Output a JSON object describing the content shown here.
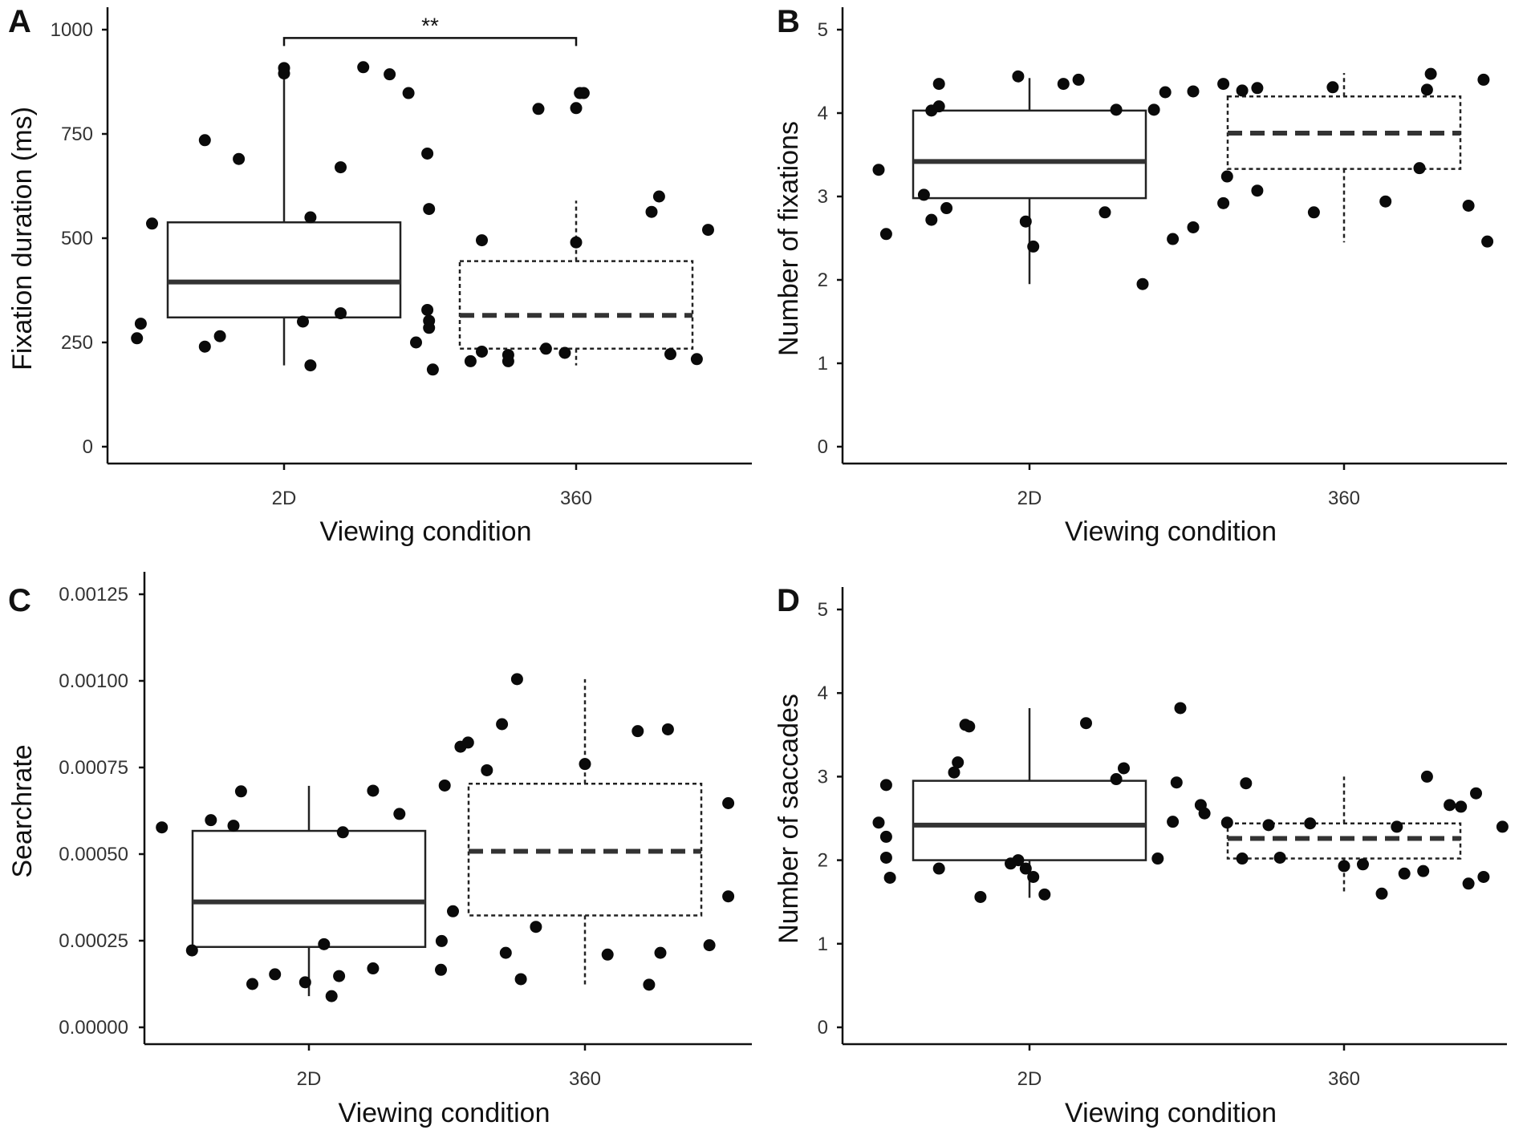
{
  "chart_data": [
    {
      "type": "box",
      "panel_label": "A",
      "xlabel": "Viewing condition",
      "ylabel": "Fixation duration (ms)",
      "categories": [
        "2D",
        "360"
      ],
      "ylim": [
        0,
        1000
      ],
      "yticks": [
        0,
        250,
        500,
        750,
        1000
      ],
      "ytick_labels": [
        "0",
        "250",
        "500",
        "750",
        "1000"
      ],
      "boxes": [
        {
          "category": "2D",
          "q1": 310,
          "median": 395,
          "q3": 538,
          "whisker_low": 195,
          "whisker_high": 900,
          "line_style": "solid"
        },
        {
          "category": "360",
          "q1": 235,
          "median": 315,
          "q3": 445,
          "whisker_low": 195,
          "whisker_high": 590,
          "line_style": "dashed"
        }
      ],
      "points": [
        {
          "category": "2D",
          "jitter": -0.39,
          "value": 260
        },
        {
          "category": "2D",
          "jitter": -0.38,
          "value": 295
        },
        {
          "category": "2D",
          "jitter": -0.35,
          "value": 535
        },
        {
          "category": "2D",
          "jitter": -0.21,
          "value": 735
        },
        {
          "category": "2D",
          "jitter": -0.21,
          "value": 240
        },
        {
          "category": "2D",
          "jitter": -0.17,
          "value": 265
        },
        {
          "category": "2D",
          "jitter": -0.12,
          "value": 690
        },
        {
          "category": "2D",
          "jitter": 0.0,
          "value": 908
        },
        {
          "category": "2D",
          "jitter": 0.0,
          "value": 895
        },
        {
          "category": "2D",
          "jitter": 0.05,
          "value": 300
        },
        {
          "category": "2D",
          "jitter": 0.07,
          "value": 550
        },
        {
          "category": "2D",
          "jitter": 0.07,
          "value": 195
        },
        {
          "category": "2D",
          "jitter": 0.15,
          "value": 670
        },
        {
          "category": "2D",
          "jitter": 0.15,
          "value": 320
        },
        {
          "category": "2D",
          "jitter": 0.21,
          "value": 910
        },
        {
          "category": "2D",
          "jitter": 0.28,
          "value": 893
        },
        {
          "category": "2D",
          "jitter": 0.33,
          "value": 848
        },
        {
          "category": "2D",
          "jitter": 0.35,
          "value": 250
        },
        {
          "category": "2D",
          "jitter": 0.38,
          "value": 703
        },
        {
          "category": "2D",
          "jitter": 0.38,
          "value": 328
        },
        {
          "category": "360",
          "jitter": -0.39,
          "value": 570
        },
        {
          "category": "360",
          "jitter": -0.39,
          "value": 302
        },
        {
          "category": "360",
          "jitter": -0.39,
          "value": 285
        },
        {
          "category": "360",
          "jitter": -0.38,
          "value": 185
        },
        {
          "category": "360",
          "jitter": -0.28,
          "value": 205
        },
        {
          "category": "360",
          "jitter": -0.25,
          "value": 495
        },
        {
          "category": "360",
          "jitter": -0.25,
          "value": 228
        },
        {
          "category": "360",
          "jitter": -0.18,
          "value": 205
        },
        {
          "category": "360",
          "jitter": -0.18,
          "value": 220
        },
        {
          "category": "360",
          "jitter": -0.1,
          "value": 810
        },
        {
          "category": "360",
          "jitter": -0.08,
          "value": 235
        },
        {
          "category": "360",
          "jitter": -0.03,
          "value": 225
        },
        {
          "category": "360",
          "jitter": 0.0,
          "value": 490
        },
        {
          "category": "360",
          "jitter": 0.0,
          "value": 812
        },
        {
          "category": "360",
          "jitter": 0.01,
          "value": 848
        },
        {
          "category": "360",
          "jitter": 0.02,
          "value": 848
        },
        {
          "category": "360",
          "jitter": 0.2,
          "value": 563
        },
        {
          "category": "360",
          "jitter": 0.22,
          "value": 600
        },
        {
          "category": "360",
          "jitter": 0.25,
          "value": 222
        },
        {
          "category": "360",
          "jitter": 0.32,
          "value": 210
        },
        {
          "category": "360",
          "jitter": 0.35,
          "value": 520
        }
      ],
      "significance": {
        "from": "2D",
        "to": "360",
        "value": 980,
        "label": "**"
      }
    },
    {
      "type": "box",
      "panel_label": "B",
      "xlabel": "Viewing condition",
      "ylabel": "Number of fixations",
      "categories": [
        "2D",
        "360"
      ],
      "ylim": [
        0,
        5
      ],
      "yticks": [
        0,
        1,
        2,
        3,
        4,
        5
      ],
      "ytick_labels": [
        "0",
        "1",
        "2",
        "3",
        "4",
        "5"
      ],
      "boxes": [
        {
          "category": "2D",
          "q1": 2.98,
          "median": 3.42,
          "q3": 4.03,
          "whisker_low": 1.95,
          "whisker_high": 4.42,
          "line_style": "solid"
        },
        {
          "category": "360",
          "q1": 3.33,
          "median": 3.76,
          "q3": 4.2,
          "whisker_low": 2.45,
          "whisker_high": 4.48,
          "line_style": "dashed"
        }
      ],
      "points": [
        {
          "category": "2D",
          "jitter": -0.4,
          "value": 3.32
        },
        {
          "category": "2D",
          "jitter": -0.38,
          "value": 2.55
        },
        {
          "category": "2D",
          "jitter": -0.28,
          "value": 3.02
        },
        {
          "category": "2D",
          "jitter": -0.26,
          "value": 4.03
        },
        {
          "category": "2D",
          "jitter": -0.26,
          "value": 2.72
        },
        {
          "category": "2D",
          "jitter": -0.24,
          "value": 4.35
        },
        {
          "category": "2D",
          "jitter": -0.24,
          "value": 4.08
        },
        {
          "category": "2D",
          "jitter": -0.22,
          "value": 2.86
        },
        {
          "category": "2D",
          "jitter": -0.03,
          "value": 4.44
        },
        {
          "category": "2D",
          "jitter": -0.01,
          "value": 2.7
        },
        {
          "category": "2D",
          "jitter": 0.01,
          "value": 2.4
        },
        {
          "category": "2D",
          "jitter": 0.09,
          "value": 4.35
        },
        {
          "category": "2D",
          "jitter": 0.13,
          "value": 4.4
        },
        {
          "category": "2D",
          "jitter": 0.2,
          "value": 2.81
        },
        {
          "category": "2D",
          "jitter": 0.23,
          "value": 4.04
        },
        {
          "category": "2D",
          "jitter": 0.3,
          "value": 1.95
        },
        {
          "category": "2D",
          "jitter": 0.33,
          "value": 4.04
        },
        {
          "category": "2D",
          "jitter": 0.36,
          "value": 4.25
        },
        {
          "category": "2D",
          "jitter": 0.38,
          "value": 2.49
        },
        {
          "category": "360",
          "jitter": -0.4,
          "value": 4.26
        },
        {
          "category": "360",
          "jitter": -0.4,
          "value": 2.63
        },
        {
          "category": "360",
          "jitter": -0.32,
          "value": 4.35
        },
        {
          "category": "360",
          "jitter": -0.32,
          "value": 2.92
        },
        {
          "category": "360",
          "jitter": -0.31,
          "value": 3.24
        },
        {
          "category": "360",
          "jitter": -0.27,
          "value": 4.27
        },
        {
          "category": "360",
          "jitter": -0.23,
          "value": 4.3
        },
        {
          "category": "360",
          "jitter": -0.23,
          "value": 3.07
        },
        {
          "category": "360",
          "jitter": -0.08,
          "value": 2.81
        },
        {
          "category": "360",
          "jitter": -0.03,
          "value": 4.31
        },
        {
          "category": "360",
          "jitter": 0.11,
          "value": 2.94
        },
        {
          "category": "360",
          "jitter": 0.2,
          "value": 3.34
        },
        {
          "category": "360",
          "jitter": 0.22,
          "value": 4.28
        },
        {
          "category": "360",
          "jitter": 0.23,
          "value": 4.47
        },
        {
          "category": "360",
          "jitter": 0.33,
          "value": 2.89
        },
        {
          "category": "360",
          "jitter": 0.37,
          "value": 4.4
        },
        {
          "category": "360",
          "jitter": 0.38,
          "value": 2.46
        }
      ]
    },
    {
      "type": "box",
      "panel_label": "C",
      "xlabel": "Viewing condition",
      "ylabel": "Searchrate",
      "categories": [
        "2D",
        "360"
      ],
      "ylim": [
        0,
        0.00125
      ],
      "yticks": [
        0,
        0.00025,
        0.0005,
        0.00075,
        0.001,
        0.00125
      ],
      "ytick_labels": [
        "0.00000",
        "0.00025",
        "0.00050",
        "0.00075",
        "0.00100",
        "0.00125"
      ],
      "boxes": [
        {
          "category": "2D",
          "q1": 0.000232,
          "median": 0.000362,
          "q3": 0.000567,
          "whisker_low": 9e-05,
          "whisker_high": 0.000697,
          "line_style": "solid"
        },
        {
          "category": "360",
          "q1": 0.000323,
          "median": 0.000508,
          "q3": 0.000703,
          "whisker_low": 0.00012,
          "whisker_high": 0.001005,
          "line_style": "dashed"
        }
      ],
      "points": [
        {
          "category": "2D",
          "jitter": -0.39,
          "value": 0.000577
        },
        {
          "category": "2D",
          "jitter": -0.31,
          "value": 0.000222
        },
        {
          "category": "2D",
          "jitter": -0.26,
          "value": 0.000598
        },
        {
          "category": "2D",
          "jitter": -0.2,
          "value": 0.000582
        },
        {
          "category": "2D",
          "jitter": -0.18,
          "value": 0.000681
        },
        {
          "category": "2D",
          "jitter": -0.15,
          "value": 0.000125
        },
        {
          "category": "2D",
          "jitter": -0.09,
          "value": 0.000153
        },
        {
          "category": "2D",
          "jitter": -0.01,
          "value": 0.00013
        },
        {
          "category": "2D",
          "jitter": 0.04,
          "value": 0.00024
        },
        {
          "category": "2D",
          "jitter": 0.06,
          "value": 9e-05
        },
        {
          "category": "2D",
          "jitter": 0.08,
          "value": 0.000148
        },
        {
          "category": "2D",
          "jitter": 0.09,
          "value": 0.000563
        },
        {
          "category": "2D",
          "jitter": 0.17,
          "value": 0.00017
        },
        {
          "category": "2D",
          "jitter": 0.17,
          "value": 0.000683
        },
        {
          "category": "2D",
          "jitter": 0.24,
          "value": 0.000616
        },
        {
          "category": "2D",
          "jitter": 0.35,
          "value": 0.000166
        },
        {
          "category": "2D",
          "jitter": 0.36,
          "value": 0.000698
        },
        {
          "category": "360",
          "jitter": -0.38,
          "value": 0.000249
        },
        {
          "category": "360",
          "jitter": -0.35,
          "value": 0.000335
        },
        {
          "category": "360",
          "jitter": -0.33,
          "value": 0.00081
        },
        {
          "category": "360",
          "jitter": -0.31,
          "value": 0.000822
        },
        {
          "category": "360",
          "jitter": -0.26,
          "value": 0.000742
        },
        {
          "category": "360",
          "jitter": -0.22,
          "value": 0.000875
        },
        {
          "category": "360",
          "jitter": -0.21,
          "value": 0.000215
        },
        {
          "category": "360",
          "jitter": -0.17,
          "value": 0.000139
        },
        {
          "category": "360",
          "jitter": -0.18,
          "value": 0.001005
        },
        {
          "category": "360",
          "jitter": -0.13,
          "value": 0.00029
        },
        {
          "category": "360",
          "jitter": 0.0,
          "value": 0.00076
        },
        {
          "category": "360",
          "jitter": 0.06,
          "value": 0.00021
        },
        {
          "category": "360",
          "jitter": 0.14,
          "value": 0.000855
        },
        {
          "category": "360",
          "jitter": 0.17,
          "value": 0.000123
        },
        {
          "category": "360",
          "jitter": 0.2,
          "value": 0.000215
        },
        {
          "category": "360",
          "jitter": 0.22,
          "value": 0.00086
        },
        {
          "category": "360",
          "jitter": 0.33,
          "value": 0.000237
        },
        {
          "category": "360",
          "jitter": 0.38,
          "value": 0.000378
        },
        {
          "category": "360",
          "jitter": 0.38,
          "value": 0.000647
        }
      ]
    },
    {
      "type": "box",
      "panel_label": "D",
      "xlabel": "Viewing condition",
      "ylabel": "Number of saccades",
      "categories": [
        "2D",
        "360"
      ],
      "ylim": [
        0,
        5
      ],
      "yticks": [
        0,
        1,
        2,
        3,
        4,
        5
      ],
      "ytick_labels": [
        "0",
        "1",
        "2",
        "3",
        "4",
        "5"
      ],
      "boxes": [
        {
          "category": "2D",
          "q1": 2.0,
          "median": 2.42,
          "q3": 2.95,
          "whisker_low": 1.55,
          "whisker_high": 3.82,
          "line_style": "solid"
        },
        {
          "category": "360",
          "q1": 2.02,
          "median": 2.26,
          "q3": 2.44,
          "whisker_low": 1.6,
          "whisker_high": 3.0,
          "line_style": "dashed"
        }
      ],
      "points": [
        {
          "category": "2D",
          "jitter": -0.4,
          "value": 2.45
        },
        {
          "category": "2D",
          "jitter": -0.38,
          "value": 2.9
        },
        {
          "category": "2D",
          "jitter": -0.38,
          "value": 2.28
        },
        {
          "category": "2D",
          "jitter": -0.38,
          "value": 2.03
        },
        {
          "category": "2D",
          "jitter": -0.37,
          "value": 1.79
        },
        {
          "category": "2D",
          "jitter": -0.24,
          "value": 1.9
        },
        {
          "category": "2D",
          "jitter": -0.2,
          "value": 3.05
        },
        {
          "category": "2D",
          "jitter": -0.19,
          "value": 3.17
        },
        {
          "category": "2D",
          "jitter": -0.17,
          "value": 3.62
        },
        {
          "category": "2D",
          "jitter": -0.16,
          "value": 3.6
        },
        {
          "category": "2D",
          "jitter": -0.13,
          "value": 1.56
        },
        {
          "category": "2D",
          "jitter": -0.05,
          "value": 1.96
        },
        {
          "category": "2D",
          "jitter": -0.03,
          "value": 2.0
        },
        {
          "category": "2D",
          "jitter": -0.01,
          "value": 1.9
        },
        {
          "category": "2D",
          "jitter": 0.01,
          "value": 1.8
        },
        {
          "category": "2D",
          "jitter": 0.04,
          "value": 1.59
        },
        {
          "category": "2D",
          "jitter": 0.15,
          "value": 3.64
        },
        {
          "category": "2D",
          "jitter": 0.23,
          "value": 2.97
        },
        {
          "category": "2D",
          "jitter": 0.25,
          "value": 3.1
        },
        {
          "category": "2D",
          "jitter": 0.34,
          "value": 2.02
        },
        {
          "category": "2D",
          "jitter": 0.38,
          "value": 2.46
        },
        {
          "category": "2D",
          "jitter": 0.39,
          "value": 2.93
        },
        {
          "category": "2D",
          "jitter": 0.4,
          "value": 3.82
        },
        {
          "category": "360",
          "jitter": -0.38,
          "value": 2.66
        },
        {
          "category": "360",
          "jitter": -0.37,
          "value": 2.56
        },
        {
          "category": "360",
          "jitter": -0.31,
          "value": 2.45
        },
        {
          "category": "360",
          "jitter": -0.27,
          "value": 2.02
        },
        {
          "category": "360",
          "jitter": -0.26,
          "value": 2.92
        },
        {
          "category": "360",
          "jitter": -0.2,
          "value": 2.42
        },
        {
          "category": "360",
          "jitter": -0.17,
          "value": 2.03
        },
        {
          "category": "360",
          "jitter": -0.09,
          "value": 2.44
        },
        {
          "category": "360",
          "jitter": 0.0,
          "value": 1.93
        },
        {
          "category": "360",
          "jitter": 0.05,
          "value": 1.95
        },
        {
          "category": "360",
          "jitter": 0.1,
          "value": 1.6
        },
        {
          "category": "360",
          "jitter": 0.14,
          "value": 2.4
        },
        {
          "category": "360",
          "jitter": 0.16,
          "value": 1.84
        },
        {
          "category": "360",
          "jitter": 0.21,
          "value": 1.87
        },
        {
          "category": "360",
          "jitter": 0.22,
          "value": 3.0
        },
        {
          "category": "360",
          "jitter": 0.28,
          "value": 2.66
        },
        {
          "category": "360",
          "jitter": 0.31,
          "value": 2.64
        },
        {
          "category": "360",
          "jitter": 0.33,
          "value": 1.72
        },
        {
          "category": "360",
          "jitter": 0.35,
          "value": 2.8
        },
        {
          "category": "360",
          "jitter": 0.37,
          "value": 1.8
        },
        {
          "category": "360",
          "jitter": 0.42,
          "value": 2.4
        }
      ]
    }
  ]
}
